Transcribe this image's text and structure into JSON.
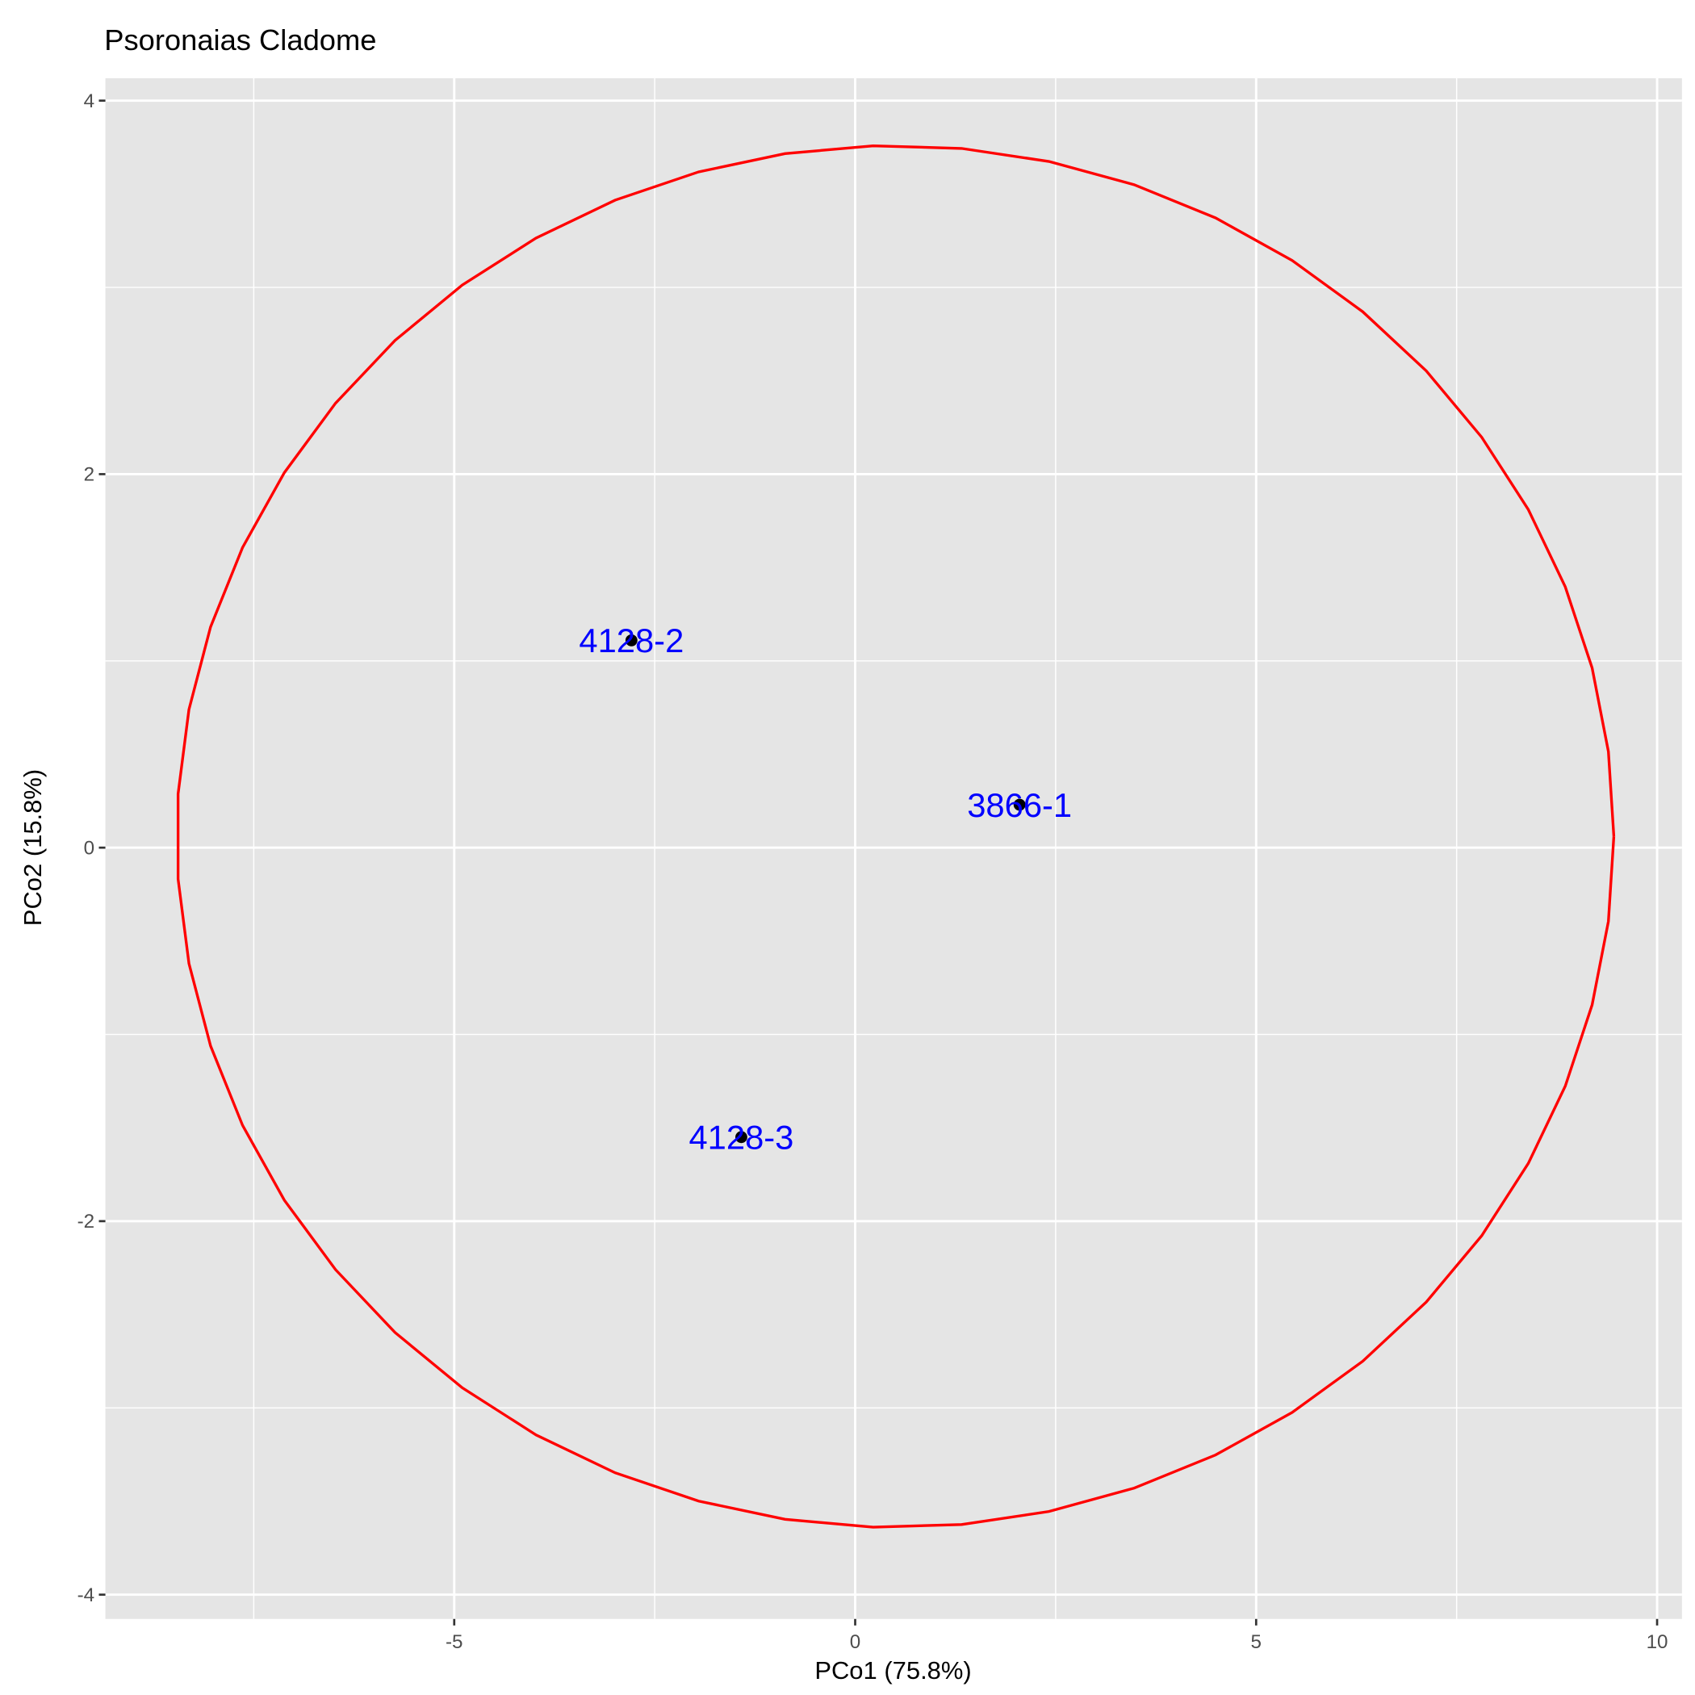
{
  "chart_data": {
    "type": "scatter",
    "title": "Psoronaias Cladome",
    "xlabel": "PCo1 (75.8%)",
    "ylabel": "PCo2 (15.8%)",
    "xlim": [
      -9.35,
      10.31
    ],
    "ylim": [
      -4.13,
      4.12
    ],
    "x_ticks": [
      -5,
      0,
      5,
      10
    ],
    "x_tick_labels": [
      "-5",
      "0",
      "5",
      "10"
    ],
    "y_ticks": [
      -4,
      -2,
      0,
      2,
      4
    ],
    "y_tick_labels": [
      "-4",
      "-2",
      "0",
      "2",
      "4"
    ],
    "x_minor": [
      -7.5,
      -2.5,
      2.5,
      7.5
    ],
    "y_minor": [
      -3,
      -1,
      1,
      3
    ],
    "grid": true,
    "points": [
      {
        "label": "4128-2",
        "x": -2.79,
        "y": 1.11
      },
      {
        "label": "3866-1",
        "x": 2.05,
        "y": 0.23
      },
      {
        "label": "4128-3",
        "x": -1.42,
        "y": -1.55
      }
    ],
    "ellipse": {
      "cx": 0.5,
      "cy": 0.06,
      "rx": 8.96,
      "ry": 3.7,
      "segments": 51
    },
    "colors": {
      "panel": "#e5e5e5",
      "grid": "#ffffff",
      "ellipse": "#ff0000",
      "label": "#0000ff",
      "point": "#000000"
    }
  }
}
